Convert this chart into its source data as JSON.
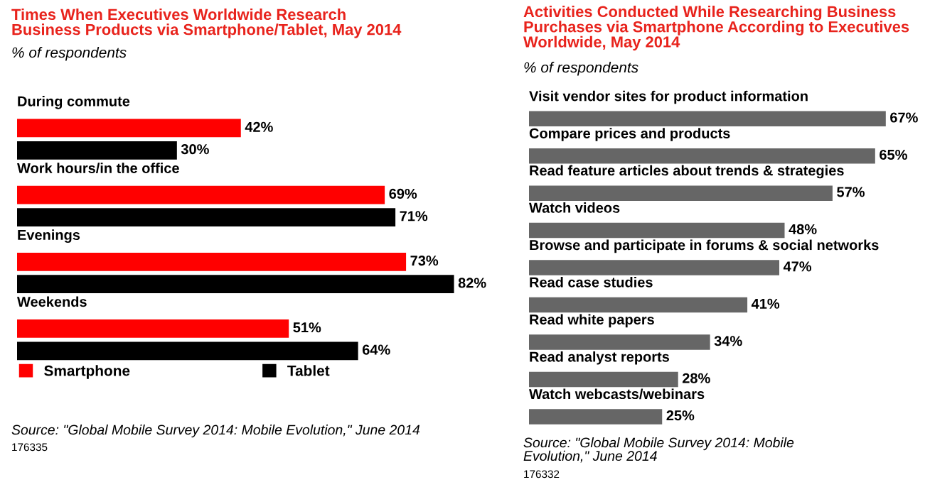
{
  "chart_data": [
    {
      "type": "bar",
      "orientation": "horizontal",
      "title": "Times When Executives Worldwide Research\nBusiness Products via Smartphone/Tablet, May 2014",
      "subtitle": "% of respondents",
      "categories": [
        "During commute",
        "Work hours/in the office",
        "Evenings",
        "Weekends"
      ],
      "series": [
        {
          "name": "Smartphone",
          "color": "#ff0000",
          "values": [
            42,
            69,
            73,
            51
          ],
          "value_labels": [
            "42%",
            "69%",
            "73%",
            "51%"
          ]
        },
        {
          "name": "Tablet",
          "color": "#000000",
          "values": [
            30,
            71,
            82,
            64
          ],
          "value_labels": [
            "30%",
            "71%",
            "82%",
            "64%"
          ]
        }
      ],
      "legend": "bottom left",
      "annotations": [
        "Source: \"Global Mobile Survey 2014: Mobile Evolution,\" June 2014",
        "176335"
      ]
    },
    {
      "type": "bar",
      "orientation": "horizontal",
      "title": "Activities Conducted While Researching Business\nPurchases via Smartphone According to Executives\nWorldwide, May 2014",
      "subtitle": "% of respondents",
      "categories": [
        "Visit vendor sites for product information",
        "Compare prices and products",
        "Read feature articles about trends & strategies",
        "Watch videos",
        "Browse and participate in forums & social networks",
        "Read case studies",
        "Read white papers",
        "Read analyst reports",
        "Watch webcasts/webinars"
      ],
      "series": [
        {
          "color": "#666666",
          "values": [
            67,
            65,
            57,
            48,
            47,
            41,
            34,
            28,
            25
          ],
          "value_labels": [
            "67%",
            "65%",
            "57%",
            "48%",
            "47%",
            "41%",
            "34%",
            "28%",
            "25%"
          ]
        }
      ],
      "annotations": [
        "Source: \"Global Mobile Survey 2014: Mobile\nEvolution,\" June 2014",
        "176332"
      ]
    }
  ]
}
